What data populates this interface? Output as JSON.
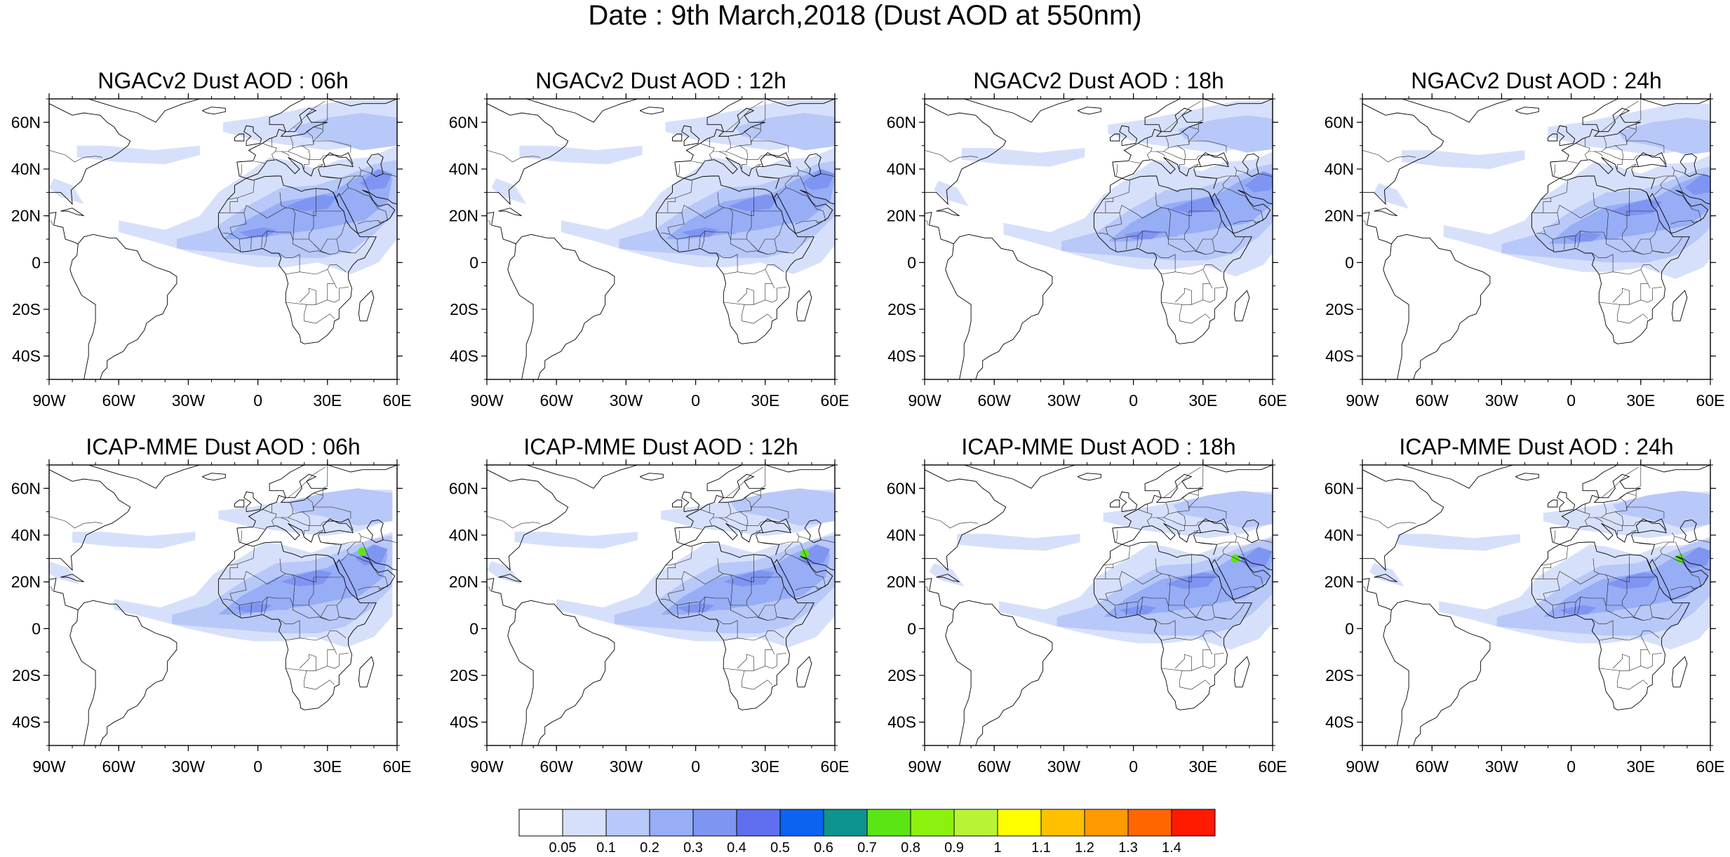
{
  "title": "Date : 9th March,2018 (Dust AOD at 550nm)",
  "axes": {
    "lat_ticks": [
      "60N",
      "40N",
      "20N",
      "0",
      "20S",
      "40S"
    ],
    "lon_ticks": [
      "90W",
      "60W",
      "30W",
      "0",
      "30E",
      "60E"
    ],
    "lat_range": [
      -50,
      70
    ],
    "lon_range": [
      -90,
      60
    ]
  },
  "panels": [
    {
      "title": "NGACv2 Dust AOD : 06h"
    },
    {
      "title": "NGACv2 Dust AOD : 12h"
    },
    {
      "title": "NGACv2 Dust AOD : 18h"
    },
    {
      "title": "NGACv2 Dust AOD : 24h"
    },
    {
      "title": "ICAP-MME Dust AOD : 06h"
    },
    {
      "title": "ICAP-MME Dust AOD : 12h"
    },
    {
      "title": "ICAP-MME Dust AOD : 18h"
    },
    {
      "title": "ICAP-MME Dust AOD : 24h"
    }
  ],
  "colorbar": {
    "labels": [
      "0.05",
      "0.1",
      "0.2",
      "0.3",
      "0.4",
      "0.5",
      "0.6",
      "0.7",
      "0.8",
      "0.9",
      "1",
      "1.1",
      "1.2",
      "1.3",
      "1.4"
    ],
    "colors": [
      "#ffffff",
      "#d7e0fb",
      "#b8c8f8",
      "#97adf6",
      "#7f95f2",
      "#5f6ff0",
      "#0b63f0",
      "#0e948e",
      "#5ce514",
      "#8cf10c",
      "#b9f335",
      "#ffff00",
      "#ffc000",
      "#ff9a00",
      "#ff6600",
      "#ff1a00"
    ]
  },
  "colors": {
    "plume_light": "#d7e0fb",
    "plume_mid": "#b8c8f8",
    "plume_strong": "#97adf6",
    "plume_core": "#7f95f2",
    "hotspot": "#5ce514"
  }
}
